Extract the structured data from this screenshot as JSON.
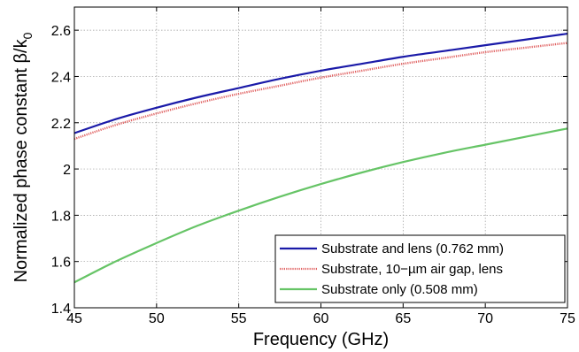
{
  "chart_data": {
    "type": "line",
    "title": "",
    "xlabel": "Frequency (GHz)",
    "ylabel": "Normalized phase constant  β/k",
    "ylabel_subscript": "0",
    "xlim": [
      45,
      75
    ],
    "ylim": [
      1.4,
      2.7
    ],
    "xticks": [
      45,
      50,
      55,
      60,
      65,
      70,
      75
    ],
    "xtick_labels": [
      "45",
      "50",
      "55",
      "60",
      "65",
      "70",
      "75"
    ],
    "yticks": [
      1.4,
      1.6,
      1.8,
      2.0,
      2.2,
      2.4,
      2.6
    ],
    "ytick_labels": [
      "1.4",
      "1.6",
      "1.8",
      "2",
      "2.2",
      "2.4",
      "2.6"
    ],
    "grid": true,
    "legend_position": "bottom-right",
    "x": [
      45,
      47.5,
      50,
      52.5,
      55,
      57.5,
      60,
      62.5,
      65,
      67.5,
      70,
      72.5,
      75
    ],
    "series": [
      {
        "name": "Substrate and lens (0.762 mm)",
        "color": "#1a1aa8",
        "style": "solid",
        "values": [
          2.155,
          2.215,
          2.265,
          2.31,
          2.35,
          2.39,
          2.425,
          2.455,
          2.485,
          2.51,
          2.535,
          2.56,
          2.585
        ]
      },
      {
        "name": "Substrate, 10−µm air gap, lens",
        "color": "#e06060",
        "style": "dotted",
        "values": [
          2.13,
          2.19,
          2.24,
          2.285,
          2.325,
          2.36,
          2.395,
          2.425,
          2.455,
          2.48,
          2.505,
          2.525,
          2.545
        ]
      },
      {
        "name": "Substrate only (0.508 mm)",
        "color": "#66c466",
        "style": "solid",
        "values": [
          1.51,
          1.6,
          1.68,
          1.755,
          1.82,
          1.88,
          1.935,
          1.985,
          2.03,
          2.07,
          2.105,
          2.14,
          2.175
        ]
      }
    ]
  }
}
